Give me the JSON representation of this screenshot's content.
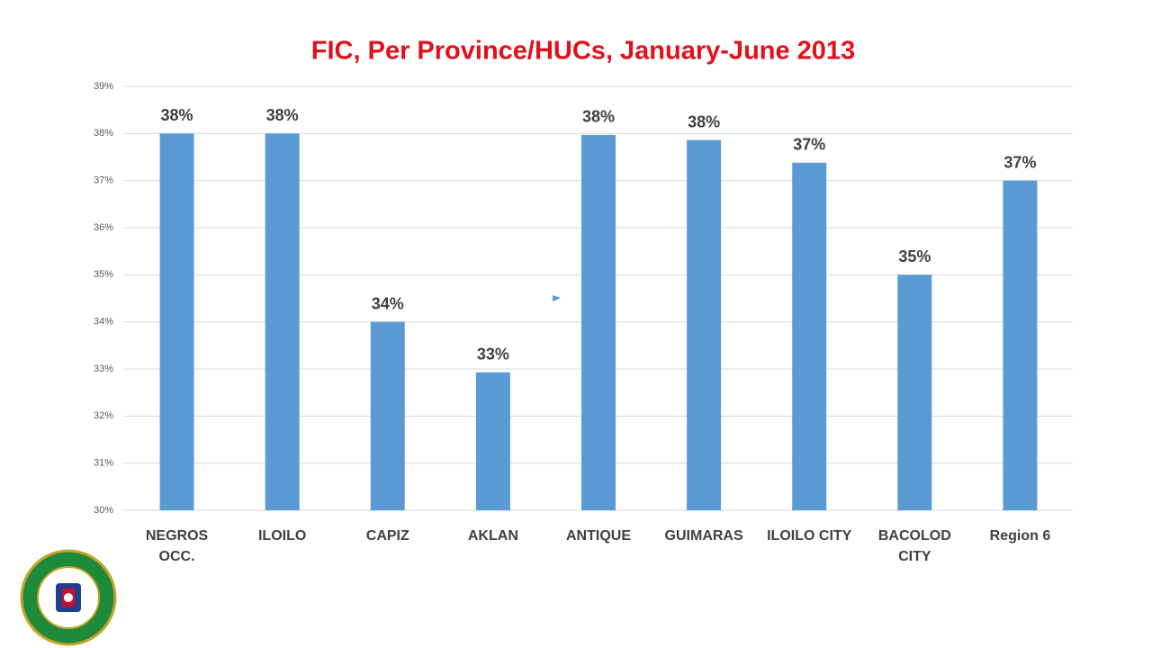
{
  "chart_data": {
    "type": "bar",
    "title": "FIC, Per Province/HUCs, January-June 2013",
    "categories": [
      "NEGROS\nOCC.",
      "ILOILO",
      "CAPIZ",
      "AKLAN",
      "ANTIQUE",
      "GUIMARAS",
      "ILOILO CITY",
      "BACOLOD\nCITY",
      "Region 6"
    ],
    "values": [
      38.0,
      38.0,
      34.0,
      32.93,
      37.97,
      37.86,
      37.38,
      35.0,
      37.0
    ],
    "value_labels": [
      "38%",
      "38%",
      "34%",
      "33%",
      "38%",
      "38%",
      "37%",
      "35%",
      "37%"
    ],
    "color": "#5b9bd5",
    "ylim": [
      30,
      39
    ],
    "yticks": [
      {
        "value": 30,
        "label": "30%"
      },
      {
        "value": 31,
        "label": "31%"
      },
      {
        "value": 32,
        "label": "32%"
      },
      {
        "value": 33,
        "label": "33%"
      },
      {
        "value": 34,
        "label": "34%"
      },
      {
        "value": 35,
        "label": "35%"
      },
      {
        "value": 36,
        "label": "36%"
      },
      {
        "value": 37,
        "label": "37%"
      },
      {
        "value": 38,
        "label": "38%"
      },
      {
        "value": 39,
        "label": "39%"
      }
    ],
    "grid": true
  }
}
